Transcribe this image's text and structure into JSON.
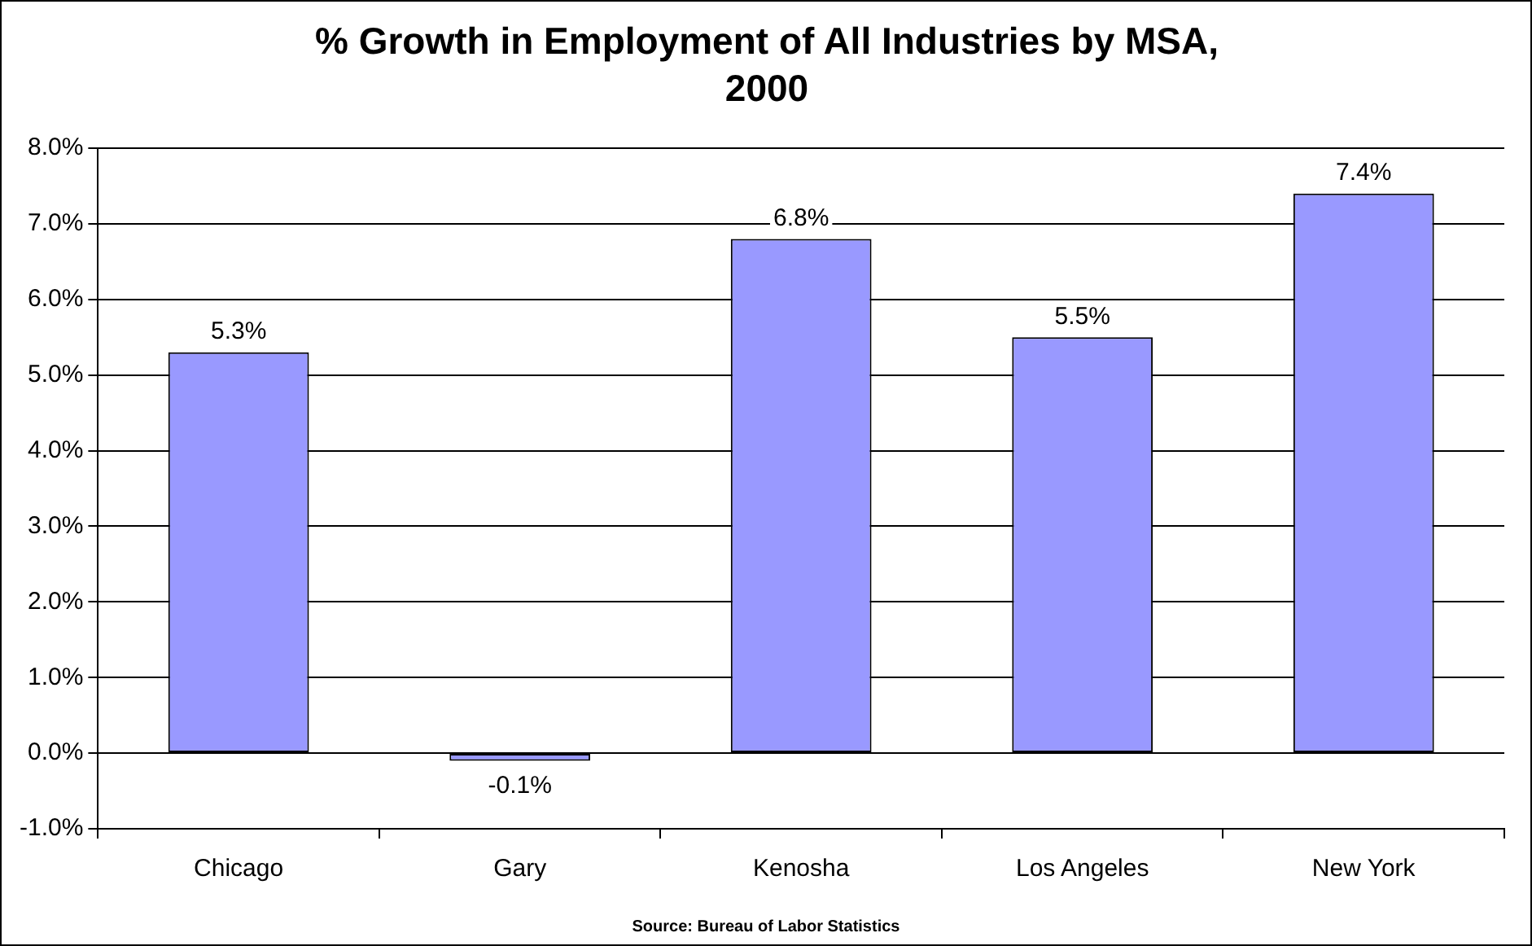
{
  "chart_data": {
    "type": "bar",
    "title": "% Growth in Employment of All Industries by MSA, 2000",
    "categories": [
      "Chicago",
      "Gary",
      "Kenosha",
      "Los Angeles",
      "New York"
    ],
    "values": [
      5.3,
      -0.1,
      6.8,
      5.5,
      7.4
    ],
    "color": "#9999ff",
    "value_labels": [
      "5.3%",
      "-0.1%",
      "6.8%",
      "5.5%",
      "7.4%"
    ],
    "ylim": [
      -1,
      8
    ],
    "yticks": [
      {
        "value": -1,
        "label": "-1.0%"
      },
      {
        "value": 0,
        "label": "0.0%"
      },
      {
        "value": 1,
        "label": "1.0%"
      },
      {
        "value": 2,
        "label": "2.0%"
      },
      {
        "value": 3,
        "label": "3.0%"
      },
      {
        "value": 4,
        "label": "4.0%"
      },
      {
        "value": 5,
        "label": "5.0%"
      },
      {
        "value": 6,
        "label": "6.0%"
      },
      {
        "value": 7,
        "label": "7.0%"
      },
      {
        "value": 8,
        "label": "8.0%"
      }
    ],
    "grid": "y",
    "legend": false,
    "annotations": [
      "Source: Bureau of Labor Statistics"
    ]
  }
}
